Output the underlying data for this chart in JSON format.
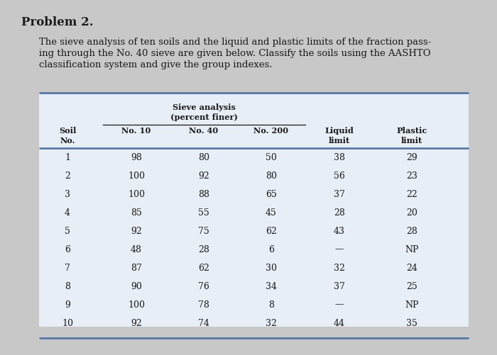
{
  "title": "Problem 2.",
  "description_lines": [
    "The sieve analysis of ten soils and the liquid and plastic limits of the fraction pass-",
    "ing through the No. 40 sieve are given below. Classify the soils using the AASHTO",
    "classification system and give the group indexes."
  ],
  "rows": [
    [
      "1",
      "98",
      "80",
      "50",
      "38",
      "29"
    ],
    [
      "2",
      "100",
      "92",
      "80",
      "56",
      "23"
    ],
    [
      "3",
      "100",
      "88",
      "65",
      "37",
      "22"
    ],
    [
      "4",
      "85",
      "55",
      "45",
      "28",
      "20"
    ],
    [
      "5",
      "92",
      "75",
      "62",
      "43",
      "28"
    ],
    [
      "6",
      "48",
      "28",
      "6",
      "—",
      "NP"
    ],
    [
      "7",
      "87",
      "62",
      "30",
      "32",
      "24"
    ],
    [
      "8",
      "90",
      "76",
      "34",
      "37",
      "25"
    ],
    [
      "9",
      "100",
      "78",
      "8",
      "—",
      "NP"
    ],
    [
      "10",
      "92",
      "74",
      "32",
      "44",
      "35"
    ]
  ],
  "bg_color": "#c8c8c8",
  "table_bg": "#e8eef5",
  "text_color": "#1a1a1a",
  "line_color": "#4a6fa5",
  "title_fontsize": 12,
  "body_fontsize": 9.5,
  "header_fontsize": 8.2,
  "data_fontsize": 9.0
}
